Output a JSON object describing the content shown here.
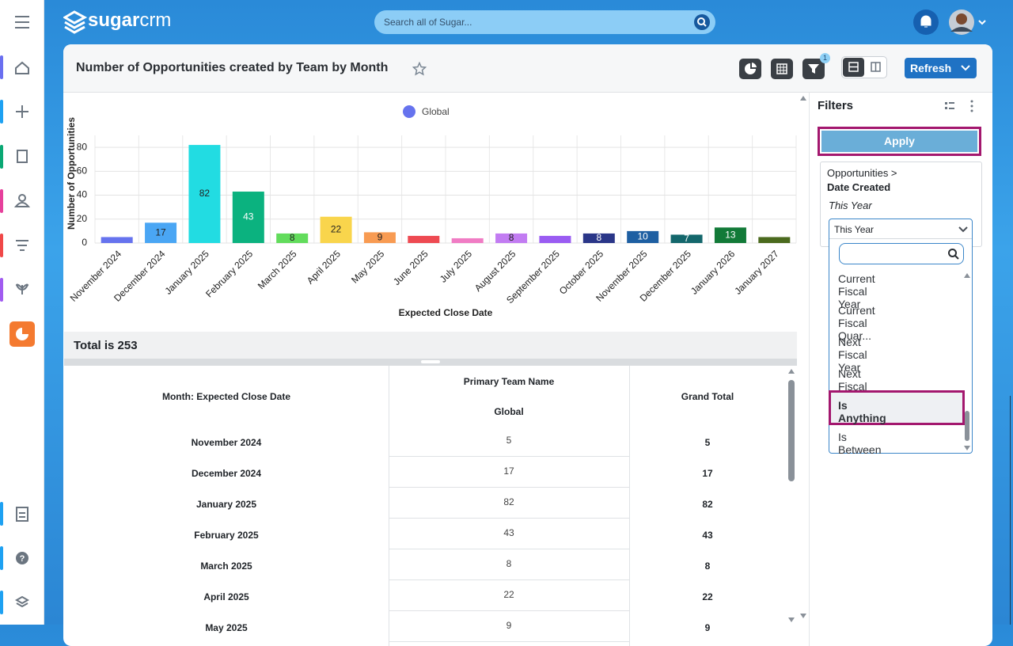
{
  "topbar": {
    "logo_bold": "sugar",
    "logo_light": "crm",
    "search_placeholder": "Search all of Sugar..."
  },
  "report": {
    "title": "Number of Opportunities created by Team by Month",
    "filter_count": 1,
    "refresh": "Refresh",
    "total": "Total is 253"
  },
  "chart_data": {
    "type": "bar",
    "categories": [
      "November 2024",
      "December 2024",
      "January 2025",
      "February 2025",
      "March 2025",
      "April 2025",
      "May 2025",
      "June 2025",
      "July 2025",
      "August 2025",
      "September 2025",
      "October 2025",
      "November 2025",
      "December 2025",
      "January 2026",
      "January 2027"
    ],
    "series": [
      {
        "name": "Global",
        "color": "#6673ee",
        "values": [
          5,
          17,
          82,
          43,
          8,
          22,
          9,
          6,
          4,
          8,
          6,
          8,
          10,
          7,
          13,
          5
        ]
      }
    ],
    "colors": [
      "#6673ee",
      "#4aa6f4",
      "#22dce2",
      "#0bb27f",
      "#62dc5c",
      "#f9d54c",
      "#f89b52",
      "#ee4a52",
      "#f07cc4",
      "#c27cf2",
      "#9a5cf2",
      "#2a3688",
      "#1e5fa2",
      "#14676c",
      "#127a38",
      "#4b6a1e"
    ],
    "xlabel": "Expected Close Date",
    "ylabel": "Number of Opportunities",
    "ylim": [
      0,
      90
    ],
    "yticks": [
      0,
      20,
      40,
      60,
      80
    ],
    "grid": true
  },
  "table": {
    "header": {
      "row_label": "Month: Expected Close Date",
      "group": "Primary Team Name",
      "group_value": "Global",
      "total": "Grand Total"
    },
    "rows": [
      [
        "November 2024",
        5,
        5
      ],
      [
        "December 2024",
        17,
        17
      ],
      [
        "January 2025",
        82,
        82
      ],
      [
        "February 2025",
        43,
        43
      ],
      [
        "March 2025",
        8,
        8
      ],
      [
        "April 2025",
        22,
        22
      ],
      [
        "May 2025",
        9,
        9
      ]
    ]
  },
  "filters": {
    "title": "Filters",
    "apply": "Apply",
    "module": "Opportunities >",
    "field": "Date Created",
    "value": "This Year",
    "selected": "This Year",
    "options": [
      "Current Fiscal Year",
      "Current Fiscal Quar...",
      "Next Fiscal Year",
      "Next Fiscal Quarter",
      "Is Anything",
      "Is Between"
    ]
  }
}
